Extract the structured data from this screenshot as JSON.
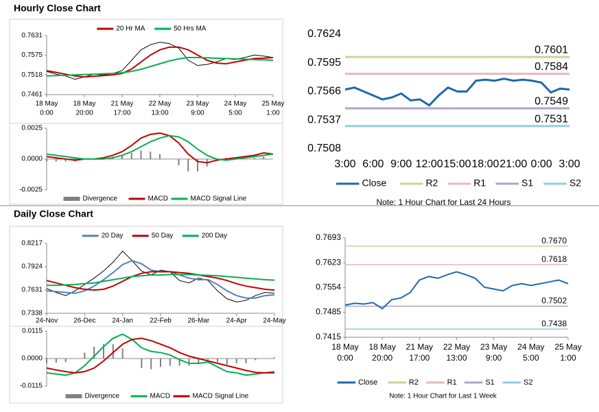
{
  "sections": [
    {
      "title": "Hourly Close Chart"
    },
    {
      "title": "Daily Close Chart"
    }
  ],
  "chart_data": [
    {
      "type": "line",
      "legend": "top",
      "ylim": [
        0.7461,
        0.7631
      ],
      "yticks": [
        0.7631,
        0.7575,
        0.7518,
        0.7461
      ],
      "categories": [
        "18 May 0:00",
        null,
        null,
        null,
        "18 May 20:00",
        null,
        null,
        null,
        "21 May 17:00",
        null,
        null,
        null,
        "22 May 13:00",
        null,
        null,
        null,
        "23 May 9:00",
        null,
        null,
        null,
        "24 May 5:00",
        null,
        null,
        null,
        "25 May 1:00"
      ],
      "series": [
        {
          "color": "#000000",
          "values": [
            0.7528,
            0.752,
            0.7515,
            0.7505,
            0.7512,
            0.752,
            0.7518,
            0.7522,
            0.753,
            0.756,
            0.759,
            0.7605,
            0.7612,
            0.7608,
            0.7595,
            0.756,
            0.7545,
            0.7548,
            0.7555,
            0.7565,
            0.7562,
            0.7568,
            0.7575,
            0.7572,
            0.7568
          ]
        },
        {
          "name": "20 Hr MA",
          "color": "#c00000",
          "values": [
            0.753,
            0.7525,
            0.752,
            0.7515,
            0.7512,
            0.7514,
            0.7516,
            0.7518,
            0.7522,
            0.7535,
            0.7555,
            0.7575,
            0.759,
            0.7598,
            0.7598,
            0.759,
            0.7575,
            0.756,
            0.7552,
            0.755,
            0.7555,
            0.756,
            0.7565,
            0.7566,
            0.7568
          ]
        },
        {
          "name": "50 Hrs MA",
          "color": "#00b050",
          "values": [
            0.7515,
            0.7516,
            0.7517,
            0.7518,
            0.7519,
            0.752,
            0.7521,
            0.7522,
            0.7524,
            0.7528,
            0.7534,
            0.7542,
            0.755,
            0.7558,
            0.7564,
            0.7568,
            0.7568,
            0.7567,
            0.7566,
            0.7565,
            0.7564,
            0.7563,
            0.7562,
            0.7561,
            0.756
          ]
        }
      ]
    },
    {
      "type": "combo",
      "legend": "bottom",
      "ylim": [
        -0.0025,
        0.0025
      ],
      "yticks": [
        0.0025,
        {
          "value": 0,
          "label": "0.0000"
        },
        -0.0025
      ],
      "series": [
        {
          "name": "Divergence",
          "type": "bar",
          "color": "#808080",
          "values": [
            -0.0002,
            -0.0002,
            -0.0002,
            -0.0002,
            0,
            0,
            0.0001,
            0.0002,
            0.0003,
            0.0005,
            0.0007,
            0.0006,
            0.0004,
            0,
            -0.0005,
            -0.001,
            -0.001,
            -0.0006,
            -0.0001,
            0.0001,
            0.0001,
            0.0001,
            0.0001,
            0.0002,
            0
          ]
        },
        {
          "name": "MACD",
          "color": "#c00000",
          "values": [
            0.0002,
            0.0001,
            0,
            -0.0001,
            0,
            0,
            0.0001,
            0.0003,
            0.0006,
            0.0011,
            0.0017,
            0.002,
            0.0021,
            0.0019,
            0.0013,
            0.0004,
            -0.0002,
            -0.0003,
            -0.0001,
            0,
            0.0001,
            0.0002,
            0.0003,
            0.0005,
            0.0004
          ]
        },
        {
          "name": "MACD Signal Line",
          "color": "#00b050",
          "values": [
            0.0004,
            0.0003,
            0.0002,
            0.0001,
            0,
            0,
            0,
            0.0001,
            0.0003,
            0.0006,
            0.001,
            0.0014,
            0.0017,
            0.0019,
            0.0018,
            0.0014,
            0.0008,
            0.0003,
            0,
            -0.0001,
            0,
            0.0001,
            0.0002,
            0.0003,
            0.0004
          ]
        }
      ]
    },
    {
      "type": "line",
      "legend": "bottom",
      "ylim": [
        0.7508,
        0.7624
      ],
      "yticks": [
        0.7624,
        0.7595,
        0.7566,
        0.7537,
        0.7508
      ],
      "categories": [
        "3:00",
        null,
        null,
        "6:00",
        null,
        null,
        "9:00",
        null,
        null,
        "12:00",
        null,
        null,
        "15:00",
        null,
        null,
        "18:00",
        null,
        null,
        "21:00",
        null,
        null,
        "0:00",
        null,
        null,
        "3:00"
      ],
      "series": [
        {
          "name": "Close",
          "color": "#1f67ad",
          "values": [
            0.7568,
            0.757,
            0.7566,
            0.7562,
            0.7558,
            0.756,
            0.7564,
            0.7557,
            0.7558,
            0.7552,
            0.7562,
            0.757,
            0.7566,
            0.7566,
            0.7577,
            0.7578,
            0.7577,
            0.7579,
            0.7577,
            0.7578,
            0.7577,
            0.7575,
            0.7565,
            0.7569,
            0.7568
          ]
        }
      ],
      "levels": [
        {
          "name": "R2",
          "value": 0.7601,
          "color": "#c3d69b"
        },
        {
          "name": "R1",
          "value": 0.7584,
          "color": "#e6b9b8"
        },
        {
          "name": "S1",
          "value": 0.7549,
          "color": "#b3a2c7"
        },
        {
          "name": "S2",
          "value": 0.7531,
          "color": "#92cddc"
        }
      ],
      "note": "Note: 1 Hour Chart for Last 24 Hours"
    },
    {
      "type": "line",
      "legend": "top",
      "ylim": [
        0.7338,
        0.8217
      ],
      "yticks": [
        0.8217,
        0.7924,
        0.7631,
        0.7338
      ],
      "categories": [
        "24-Nov",
        null,
        null,
        null,
        "26-Dec",
        null,
        null,
        null,
        "24-Jan",
        null,
        null,
        null,
        "22-Feb",
        null,
        null,
        null,
        "26-Mar",
        null,
        null,
        null,
        "24-Apr",
        null,
        null,
        null,
        "24-May"
      ],
      "series": [
        {
          "color": "#000000",
          "values": [
            0.765,
            0.76,
            0.756,
            0.762,
            0.77,
            0.778,
            0.787,
            0.798,
            0.812,
            0.8,
            0.787,
            0.782,
            0.788,
            0.786,
            0.775,
            0.772,
            0.778,
            0.775,
            0.762,
            0.752,
            0.748,
            0.75,
            0.756,
            0.76,
            0.759
          ]
        },
        {
          "name": "20 Day",
          "color": "#4f81bd",
          "values": [
            0.762,
            0.761,
            0.76,
            0.759,
            0.762,
            0.768,
            0.776,
            0.785,
            0.795,
            0.8,
            0.796,
            0.788,
            0.786,
            0.786,
            0.782,
            0.778,
            0.776,
            0.776,
            0.77,
            0.762,
            0.756,
            0.753,
            0.753,
            0.756,
            0.757
          ]
        },
        {
          "name": "50 Day",
          "color": "#c00000",
          "values": [
            0.775,
            0.772,
            0.769,
            0.766,
            0.764,
            0.763,
            0.764,
            0.768,
            0.774,
            0.78,
            0.784,
            0.786,
            0.786,
            0.786,
            0.785,
            0.784,
            0.782,
            0.78,
            0.778,
            0.775,
            0.771,
            0.768,
            0.766,
            0.764,
            0.763
          ]
        },
        {
          "name": "200 Day",
          "color": "#00b050",
          "values": [
            0.769,
            0.769,
            0.7695,
            0.77,
            0.771,
            0.772,
            0.774,
            0.776,
            0.778,
            0.78,
            0.781,
            0.782,
            0.782,
            0.7825,
            0.7825,
            0.7825,
            0.782,
            0.7815,
            0.781,
            0.78,
            0.779,
            0.778,
            0.777,
            0.776,
            0.7755
          ]
        }
      ]
    },
    {
      "type": "combo",
      "legend": "bottom",
      "ylim": [
        -0.0115,
        0.0115
      ],
      "yticks": [
        0.0115,
        {
          "value": 0,
          "label": "0.0000"
        },
        -0.0115
      ],
      "series": [
        {
          "name": "Divergence",
          "type": "bar",
          "color": "#808080",
          "values": [
            -0.002,
            -0.0017,
            -0.0015,
            0,
            0.0025,
            0.005,
            0.006,
            0.006,
            0.0042,
            0,
            -0.004,
            -0.0045,
            -0.0035,
            -0.003,
            -0.003,
            -0.003,
            -0.002,
            -0.0005,
            -0.0015,
            -0.0025,
            -0.002,
            -0.002,
            -0.0007,
            0,
            0.0005
          ]
        },
        {
          "name": "MACD",
          "color": "#00b050",
          "values": [
            -0.006,
            -0.0065,
            -0.007,
            -0.006,
            -0.003,
            0.001,
            0.005,
            0.0085,
            0.0102,
            0.008,
            0.0045,
            0.003,
            0.0025,
            0.0015,
            -0.0005,
            -0.002,
            -0.002,
            -0.0015,
            -0.0035,
            -0.0055,
            -0.006,
            -0.007,
            -0.0065,
            -0.006,
            -0.0055
          ]
        },
        {
          "name": "MACD Signal Line",
          "color": "#c00000",
          "values": [
            -0.004,
            -0.0048,
            -0.0055,
            -0.006,
            -0.0055,
            -0.004,
            -0.001,
            0.0025,
            0.006,
            0.008,
            0.0085,
            0.0075,
            0.006,
            0.0045,
            0.0025,
            0.001,
            0,
            -0.001,
            -0.002,
            -0.003,
            -0.004,
            -0.005,
            -0.0058,
            -0.006,
            -0.006
          ]
        }
      ]
    },
    {
      "type": "line",
      "legend": "bottom",
      "ylim": [
        0.7415,
        0.7693
      ],
      "yticks": [
        0.7693,
        0.7623,
        0.7554,
        0.7485,
        0.7415
      ],
      "categories": [
        "18 May 0:00",
        null,
        null,
        null,
        "18 May 20:00",
        null,
        null,
        null,
        "21 May 17:00",
        null,
        null,
        null,
        "22 May 13:00",
        null,
        null,
        null,
        "23 May 9:00",
        null,
        null,
        null,
        "24 May 5:00",
        null,
        null,
        null,
        "25 May 1:00"
      ],
      "series": [
        {
          "name": "Close",
          "color": "#1f67ad",
          "values": [
            0.7505,
            0.751,
            0.7508,
            0.7512,
            0.7495,
            0.752,
            0.7525,
            0.754,
            0.7575,
            0.7585,
            0.758,
            0.759,
            0.7598,
            0.759,
            0.758,
            0.7555,
            0.755,
            0.7545,
            0.756,
            0.7565,
            0.756,
            0.7565,
            0.757,
            0.7575,
            0.7565
          ]
        }
      ],
      "levels": [
        {
          "name": "R2",
          "value": 0.767,
          "label": "0.7670",
          "color": "#c3d69b"
        },
        {
          "name": "R1",
          "value": 0.7618,
          "color": "#e6b9b8"
        },
        {
          "name": "S1",
          "value": 0.7502,
          "color": "#b3a2c7"
        },
        {
          "name": "S2",
          "value": 0.7438,
          "color": "#92cddc"
        }
      ],
      "note": "Note: 1 Hour Chart for Last 1 Week"
    }
  ]
}
